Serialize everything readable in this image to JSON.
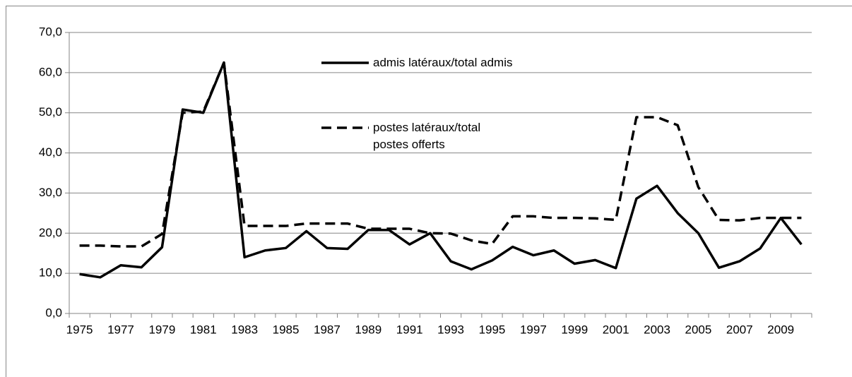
{
  "chart_data": {
    "type": "line",
    "categories": [
      "1975",
      null,
      "1977",
      null,
      "1979",
      null,
      "1981",
      null,
      "1983",
      null,
      "1985",
      null,
      "1987",
      null,
      "1989",
      null,
      "1991",
      null,
      "1993",
      null,
      "1995",
      null,
      "1997",
      null,
      "1999",
      null,
      "2001",
      null,
      "2003",
      null,
      "2005",
      null,
      "2007",
      null,
      "2009",
      null
    ],
    "series": [
      {
        "name": "admis latéraux/total admis",
        "color": "#000000",
        "dash": false,
        "values": [
          9.8,
          9.0,
          12.0,
          11.5,
          16.5,
          50.8,
          50.0,
          62.5,
          14.0,
          15.7,
          16.3,
          20.5,
          16.3,
          16.1,
          20.8,
          20.8,
          17.2,
          20.0,
          13.0,
          11.0,
          13.2,
          16.6,
          14.5,
          15.7,
          12.4,
          13.3,
          11.3,
          28.6,
          31.8,
          25.0,
          20.0,
          11.4,
          13.0,
          16.2,
          23.8,
          17.2
        ]
      },
      {
        "name": "postes latéraux/total postes offerts",
        "color": "#000000",
        "dash": true,
        "values": [
          16.9,
          16.9,
          16.7,
          16.7,
          19.8,
          50.0,
          50.3,
          62.5,
          21.8,
          21.8,
          21.8,
          22.4,
          22.4,
          22.4,
          21.1,
          21.1,
          21.1,
          20.0,
          19.9,
          18.2,
          17.3,
          24.2,
          24.2,
          23.8,
          23.8,
          23.7,
          23.3,
          48.9,
          48.9,
          46.9,
          31.5,
          23.3,
          23.2,
          23.8,
          23.8,
          23.8
        ]
      }
    ],
    "ylim": [
      0,
      70
    ],
    "yticks": [
      {
        "value": 0,
        "label": "0,0"
      },
      {
        "value": 10,
        "label": "10,0"
      },
      {
        "value": 20,
        "label": "20,0"
      },
      {
        "value": 30,
        "label": "30,0"
      },
      {
        "value": 40,
        "label": "40,0"
      },
      {
        "value": 50,
        "label": "50,0"
      },
      {
        "value": 60,
        "label": "60,0"
      },
      {
        "value": 70,
        "label": "70,0"
      }
    ],
    "grid": true
  }
}
